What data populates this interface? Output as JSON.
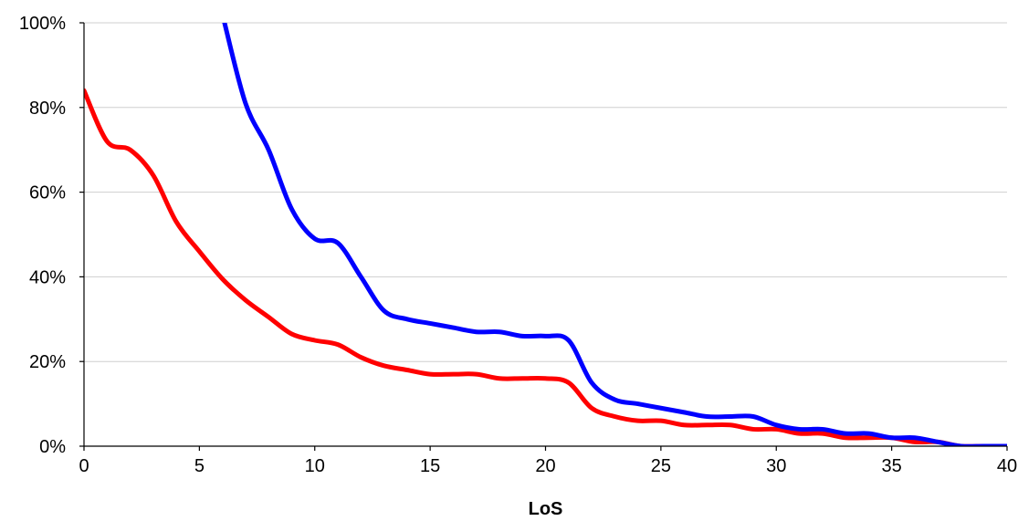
{
  "chart_data": {
    "type": "line",
    "title": "",
    "xlabel": "LoS",
    "ylabel": "",
    "xlim": [
      0,
      40
    ],
    "ylim": [
      0,
      100
    ],
    "x_ticks": [
      0,
      5,
      10,
      15,
      20,
      25,
      30,
      35,
      40
    ],
    "x_tick_labels": [
      "0",
      "5",
      "10",
      "15",
      "20",
      "25",
      "30",
      "35",
      "40"
    ],
    "y_ticks": [
      0,
      20,
      40,
      60,
      80,
      100
    ],
    "y_tick_labels": [
      "0%",
      "20%",
      "40%",
      "60%",
      "80%",
      "100%"
    ],
    "grid": "horizontal",
    "legend": "none",
    "x": [
      0,
      1,
      2,
      3,
      4,
      5,
      6,
      7,
      8,
      9,
      10,
      11,
      12,
      13,
      14,
      15,
      16,
      17,
      18,
      19,
      20,
      21,
      22,
      23,
      24,
      25,
      26,
      27,
      28,
      29,
      30,
      31,
      32,
      33,
      34,
      35,
      36,
      37,
      38,
      39,
      40
    ],
    "series": [
      {
        "color": "#ff0000",
        "values": [
          84,
          72,
          70,
          64,
          53,
          46,
          39.5,
          34.5,
          30.5,
          26.5,
          25,
          24,
          21,
          19,
          18,
          17,
          17,
          17,
          16,
          16,
          16,
          15,
          9,
          7,
          6,
          6,
          5,
          5,
          5,
          4,
          4,
          3,
          3,
          2,
          2,
          2,
          1,
          1,
          0,
          0,
          0
        ]
      },
      {
        "color": "#0000ff",
        "values": [
          null,
          null,
          null,
          null,
          null,
          null,
          102,
          81,
          70,
          56,
          49,
          48,
          40,
          32,
          30,
          29,
          28,
          27,
          27,
          26,
          26,
          25,
          15,
          11,
          10,
          9,
          8,
          7,
          7,
          7,
          5,
          4,
          4,
          3,
          3,
          2,
          2,
          1,
          0,
          0,
          0
        ]
      }
    ]
  }
}
